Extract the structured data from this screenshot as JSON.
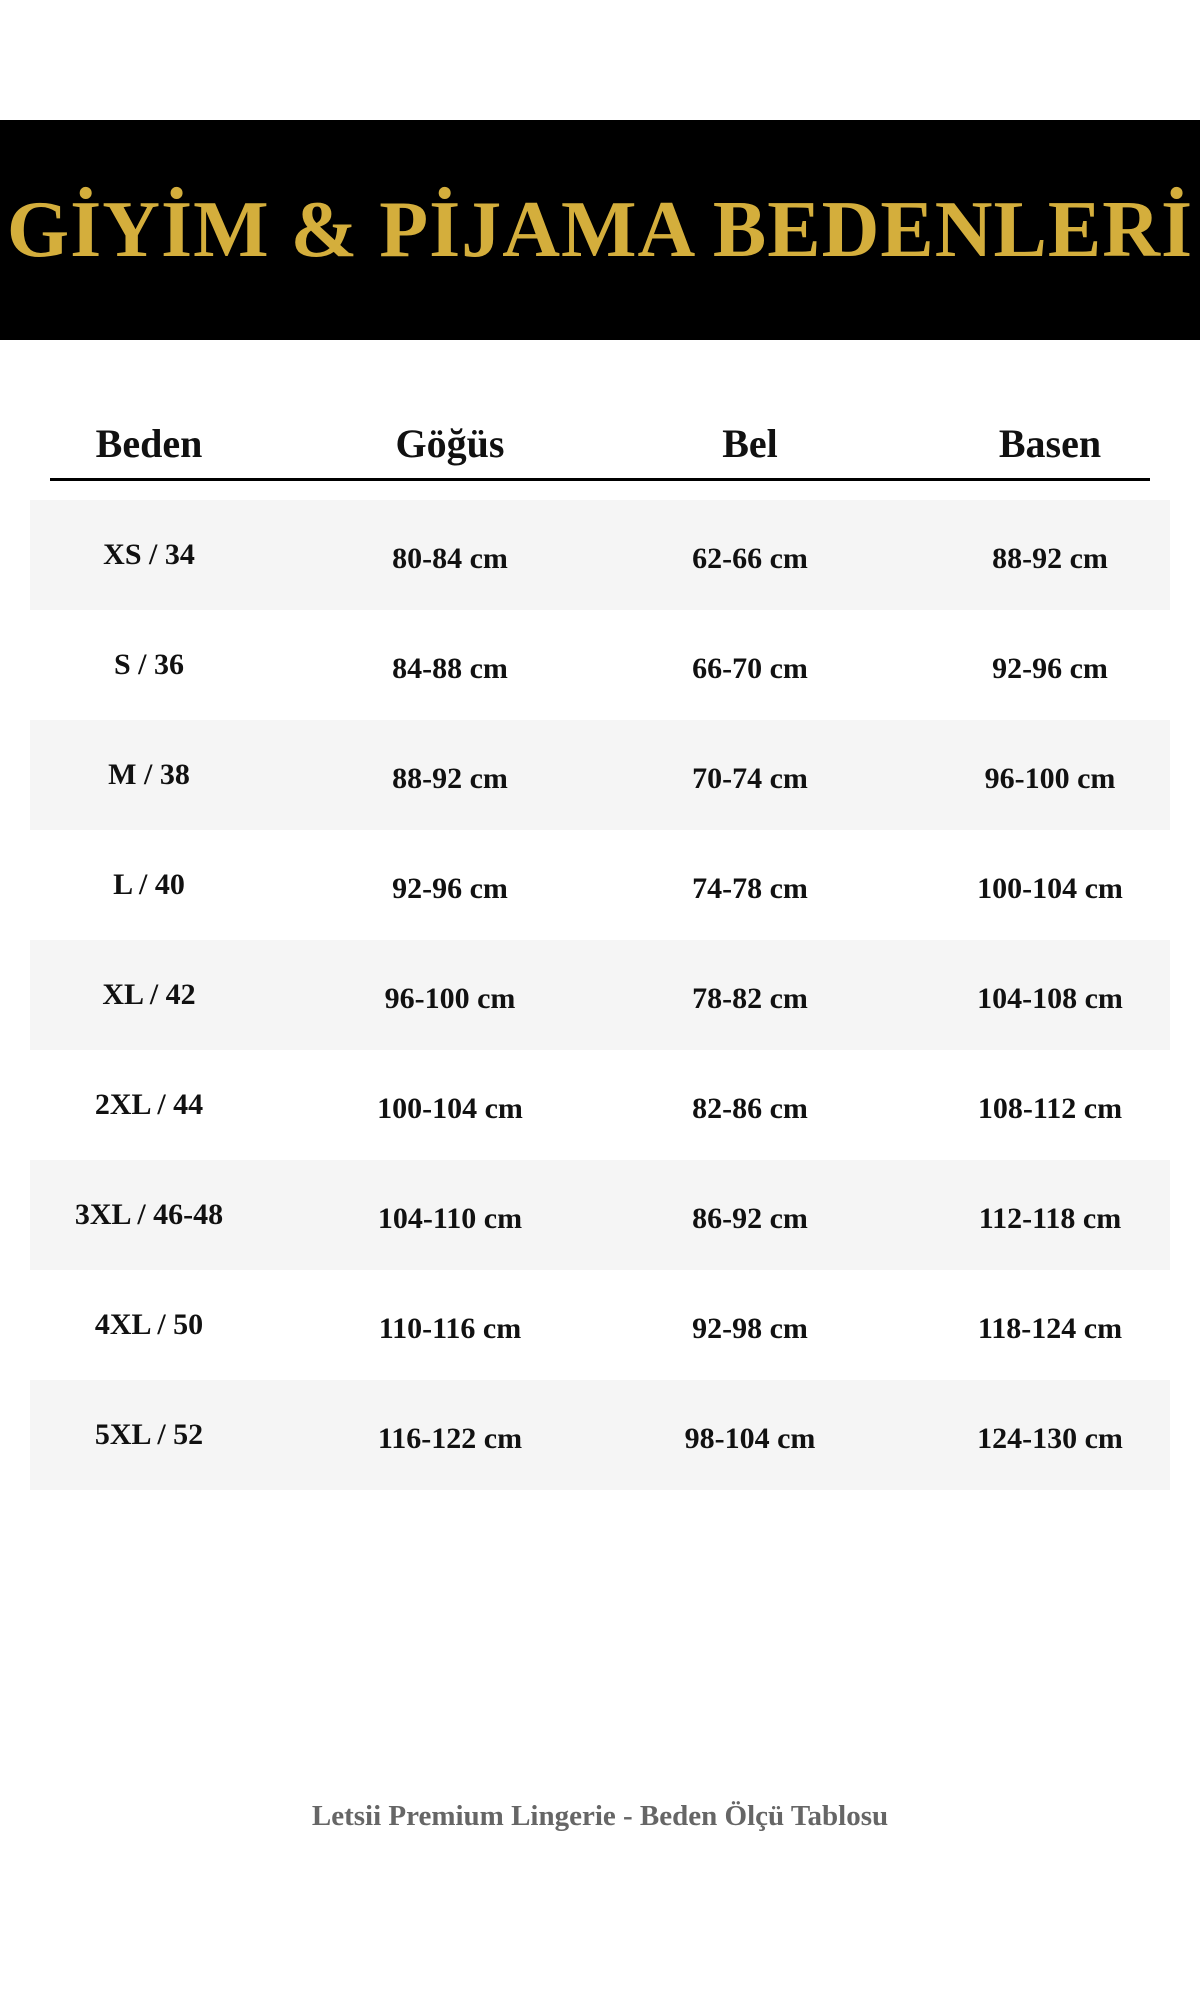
{
  "title": "GİYİM & PİJAMA BEDENLERİ",
  "colors": {
    "banner_bg": "#000000",
    "title_gold": "#d4ae3c",
    "row_alt_bg": "#f5f5f5",
    "footer_text": "#666666"
  },
  "table": {
    "headers": [
      "Beden",
      "Göğüs",
      "Bel",
      "Basen"
    ],
    "rows": [
      [
        "XS / 34",
        "80-84 cm",
        "62-66 cm",
        "88-92 cm"
      ],
      [
        "S / 36",
        "84-88 cm",
        "66-70 cm",
        "92-96 cm"
      ],
      [
        "M / 38",
        "88-92 cm",
        "70-74 cm",
        "96-100 cm"
      ],
      [
        "L / 40",
        "92-96 cm",
        "74-78 cm",
        "100-104 cm"
      ],
      [
        "XL / 42",
        "96-100 cm",
        "78-82 cm",
        "104-108 cm"
      ],
      [
        "2XL / 44",
        "100-104 cm",
        "82-86 cm",
        "108-112 cm"
      ],
      [
        "3XL / 46-48",
        "104-110 cm",
        "86-92 cm",
        "112-118 cm"
      ],
      [
        "4XL / 50",
        "110-116 cm",
        "92-98 cm",
        "118-124 cm"
      ],
      [
        "5XL / 52",
        "116-122 cm",
        "98-104 cm",
        "124-130 cm"
      ]
    ]
  },
  "footer": "Letsii Premium Lingerie - Beden Ölçü Tablosu"
}
